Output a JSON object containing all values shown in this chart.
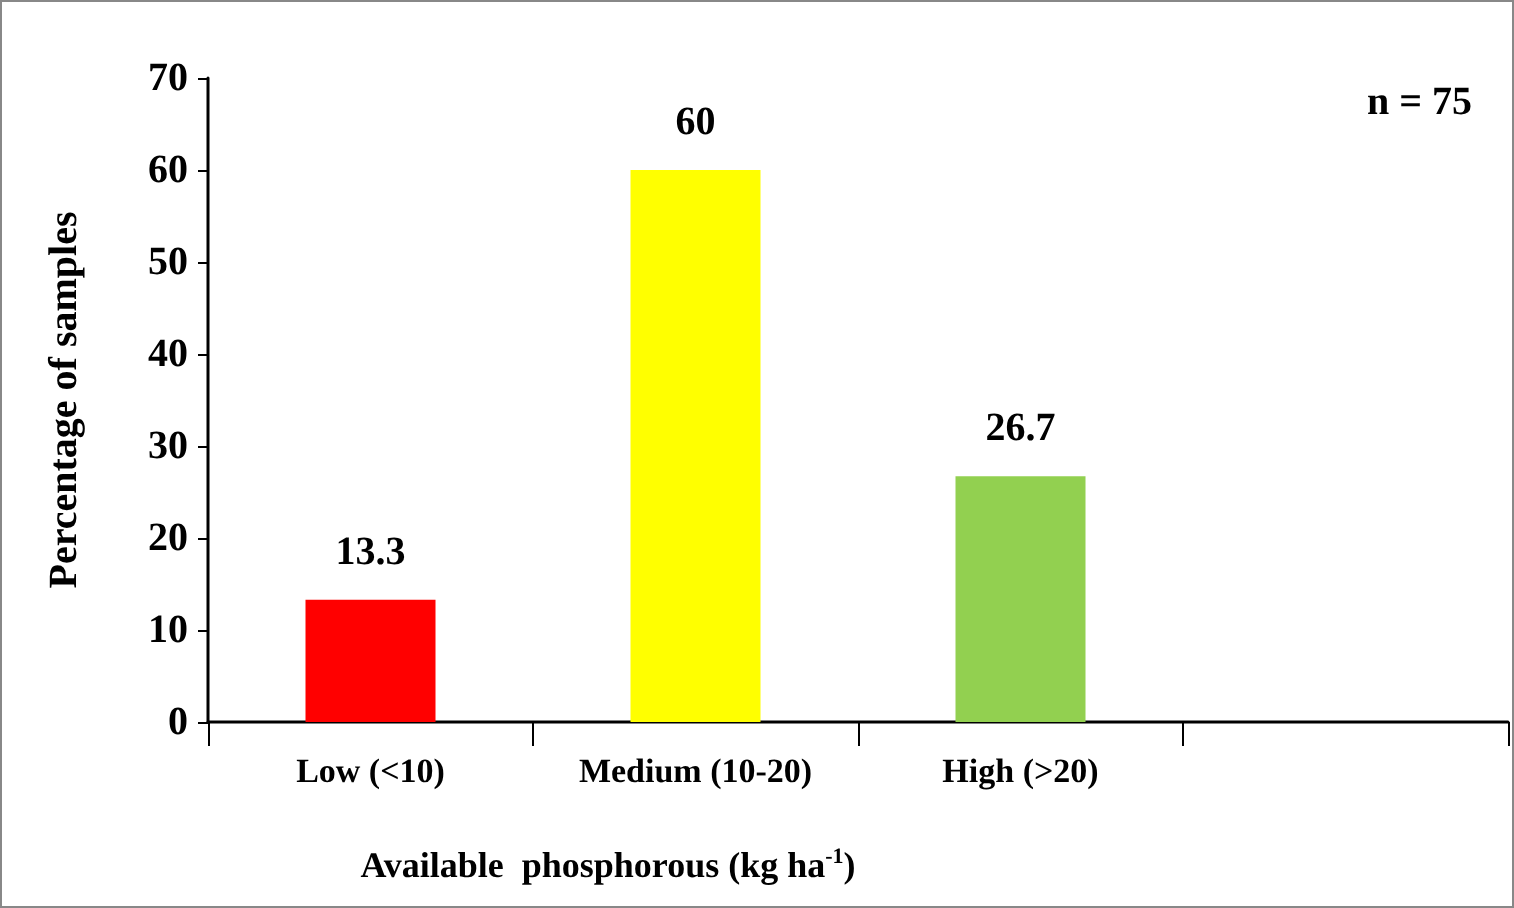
{
  "chart_data": {
    "type": "bar",
    "categories": [
      "Low (<10)",
      "Medium (10-20)",
      "High (>20)",
      null
    ],
    "values": [
      13.3,
      60,
      26.7,
      null
    ],
    "colors": [
      "#ff0000",
      "#ffff00",
      "#92d050",
      null
    ],
    "xlabel": "Available  phosphorous (kg ha$^{-1}$)",
    "ylabel": "Percentage of samples",
    "ylim": [
      0,
      70
    ],
    "yticks": [
      0,
      10,
      20,
      30,
      40,
      50,
      60,
      70
    ],
    "data_labels": true,
    "grid": false,
    "annotations": [
      "n = 75"
    ]
  }
}
